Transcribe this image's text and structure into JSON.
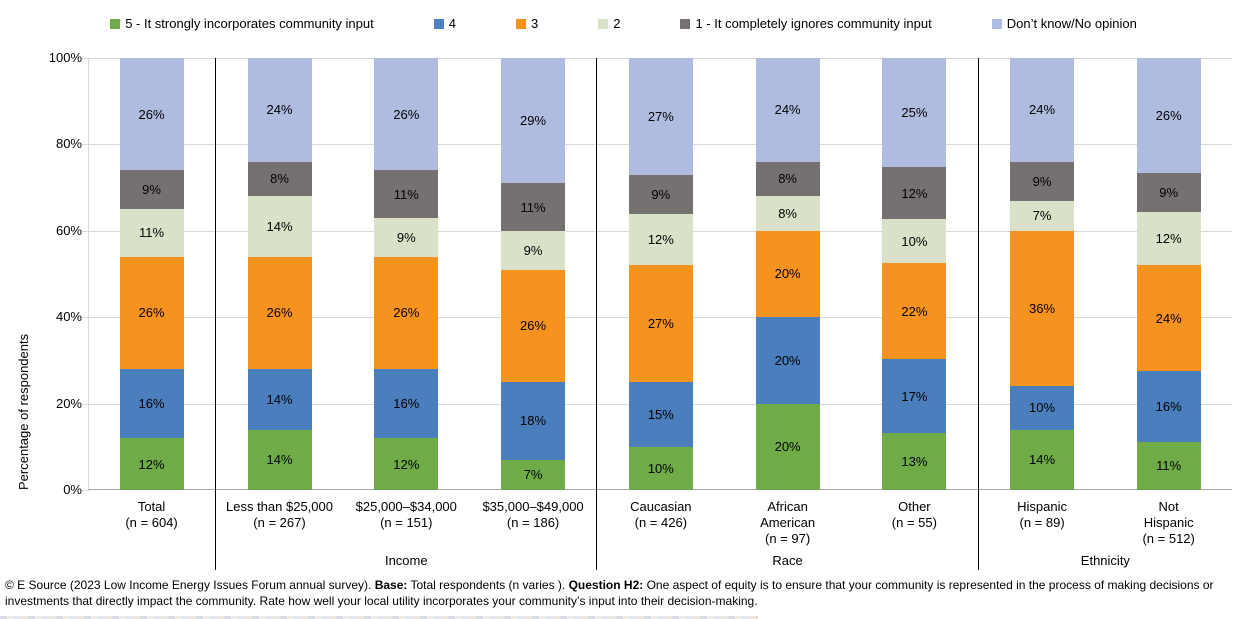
{
  "chart_data": {
    "type": "bar",
    "stacked": true,
    "orientation": "vertical",
    "ylabel": "Percentage of respondents",
    "ylim": [
      0,
      100
    ],
    "y_ticks": [
      "0%",
      "20%",
      "40%",
      "60%",
      "80%",
      "100%"
    ],
    "grid": "horizontal",
    "legend_position": "top",
    "series": [
      {
        "key": "5",
        "label": "5 - It strongly incorporates community input",
        "color": "#6FAC47"
      },
      {
        "key": "4",
        "label": "4",
        "color": "#4A7EBC"
      },
      {
        "key": "3",
        "label": "3",
        "color": "#F6921E"
      },
      {
        "key": "2",
        "label": "2",
        "color": "#D9E2C9"
      },
      {
        "key": "1",
        "label": "1 - It completely ignores community input",
        "color": "#767171"
      },
      {
        "key": "dk",
        "label": "Don’t know/No opinion",
        "color": "#B0BBE0"
      }
    ],
    "value_suffix": "%",
    "groups": [
      {
        "name": "",
        "bars": [
          {
            "category": "Total",
            "label_lines": [
              "Total",
              "(n = 604)"
            ],
            "values": [
              12,
              16,
              26,
              11,
              9,
              26
            ]
          }
        ]
      },
      {
        "name": "Income",
        "bars": [
          {
            "category": "Less than $25,000",
            "label_lines": [
              "Less than $25,000",
              "(n = 267)"
            ],
            "values": [
              14,
              14,
              26,
              14,
              8,
              24
            ]
          },
          {
            "category": "$25,000–$34,000",
            "label_lines": [
              "$25,000–$34,000",
              "(n = 151)"
            ],
            "values": [
              12,
              16,
              26,
              9,
              11,
              26
            ]
          },
          {
            "category": "$35,000–$49,000",
            "label_lines": [
              "$35,000–$49,000",
              "(n = 186)"
            ],
            "values": [
              7,
              18,
              26,
              9,
              11,
              29
            ]
          }
        ]
      },
      {
        "name": "Race",
        "bars": [
          {
            "category": "Caucasian",
            "label_lines": [
              "Caucasian",
              "(n = 426)"
            ],
            "values": [
              10,
              15,
              27,
              12,
              9,
              27
            ]
          },
          {
            "category": "African American",
            "label_lines": [
              "African",
              "American",
              "(n = 97)"
            ],
            "values": [
              20,
              20,
              20,
              8,
              8,
              24
            ]
          },
          {
            "category": "Other",
            "label_lines": [
              "Other",
              "(n = 55)"
            ],
            "values": [
              13,
              17,
              22,
              10,
              12,
              25
            ]
          }
        ]
      },
      {
        "name": "Ethnicity",
        "bars": [
          {
            "category": "Hispanic",
            "label_lines": [
              "Hispanic",
              "(n = 89)"
            ],
            "values": [
              14,
              10,
              36,
              7,
              9,
              24
            ]
          },
          {
            "category": "Not Hispanic",
            "label_lines": [
              "Not",
              "Hispanic",
              "(n = 512)"
            ],
            "values": [
              11,
              16,
              24,
              12,
              9,
              26
            ]
          }
        ]
      }
    ]
  },
  "footer": {
    "segments": [
      {
        "text": "© E Source (2023 Low Income Energy Issues Forum annual survey). ",
        "bold": false
      },
      {
        "text": "Base:",
        "bold": true
      },
      {
        "text": " Total respondents (n varies ). ",
        "bold": false
      },
      {
        "text": "Question H2:",
        "bold": true
      },
      {
        "text": " One aspect of equity is to ensure that your community is represented in the process of making decisions or investments that directly impact the community. Rate how well your local utility incorporates your community’s input into  their decision-making.",
        "bold": false
      }
    ]
  }
}
